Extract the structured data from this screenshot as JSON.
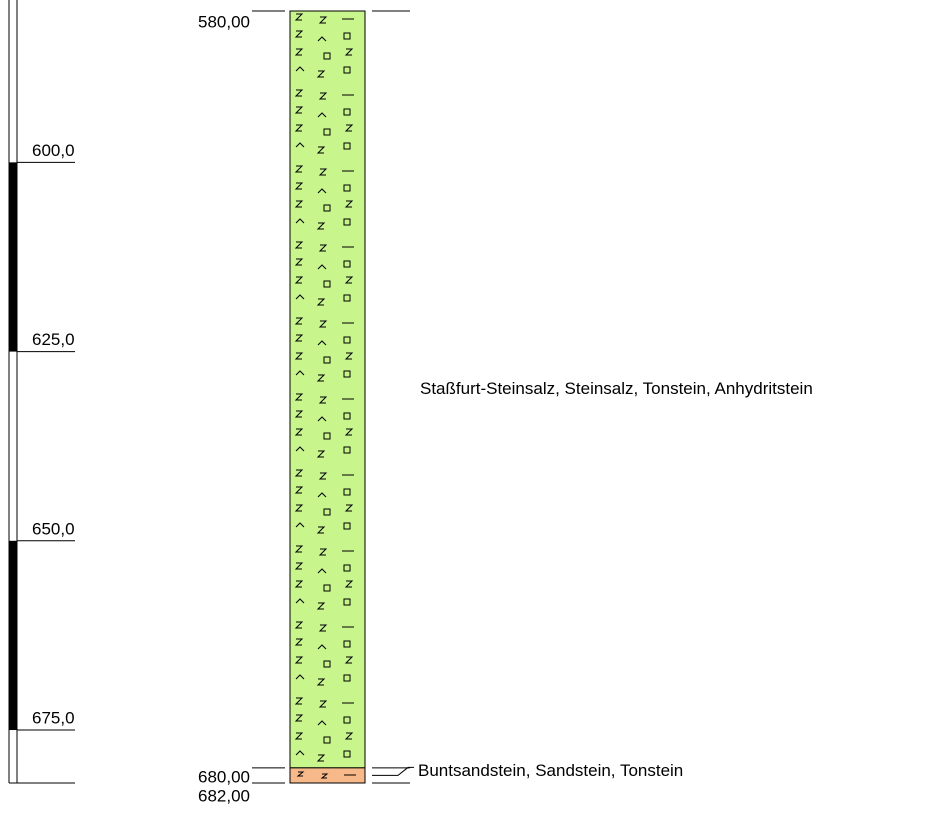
{
  "scale": {
    "ticks": [
      {
        "value": 600,
        "label": "600,0"
      },
      {
        "value": 625,
        "label": "625,0"
      },
      {
        "value": 650,
        "label": "650,0"
      },
      {
        "value": 675,
        "label": "675,0"
      }
    ]
  },
  "layers": [
    {
      "top": {
        "value": 580,
        "label": "580,00"
      },
      "bottom": {
        "value": 680,
        "label": "680,00"
      },
      "description": "Staßfurt-Steinsalz, Steinsalz, Tonstein, Anhydritstein",
      "color": "#c8f58c",
      "pattern": "salt"
    },
    {
      "top": {
        "value": 680,
        "label": "680,00"
      },
      "bottom": {
        "value": 682,
        "label": "682,00"
      },
      "description": "Buntsandstein, Sandstein, Tonstein",
      "color": "#f7b98a",
      "pattern": "sand"
    }
  ]
}
